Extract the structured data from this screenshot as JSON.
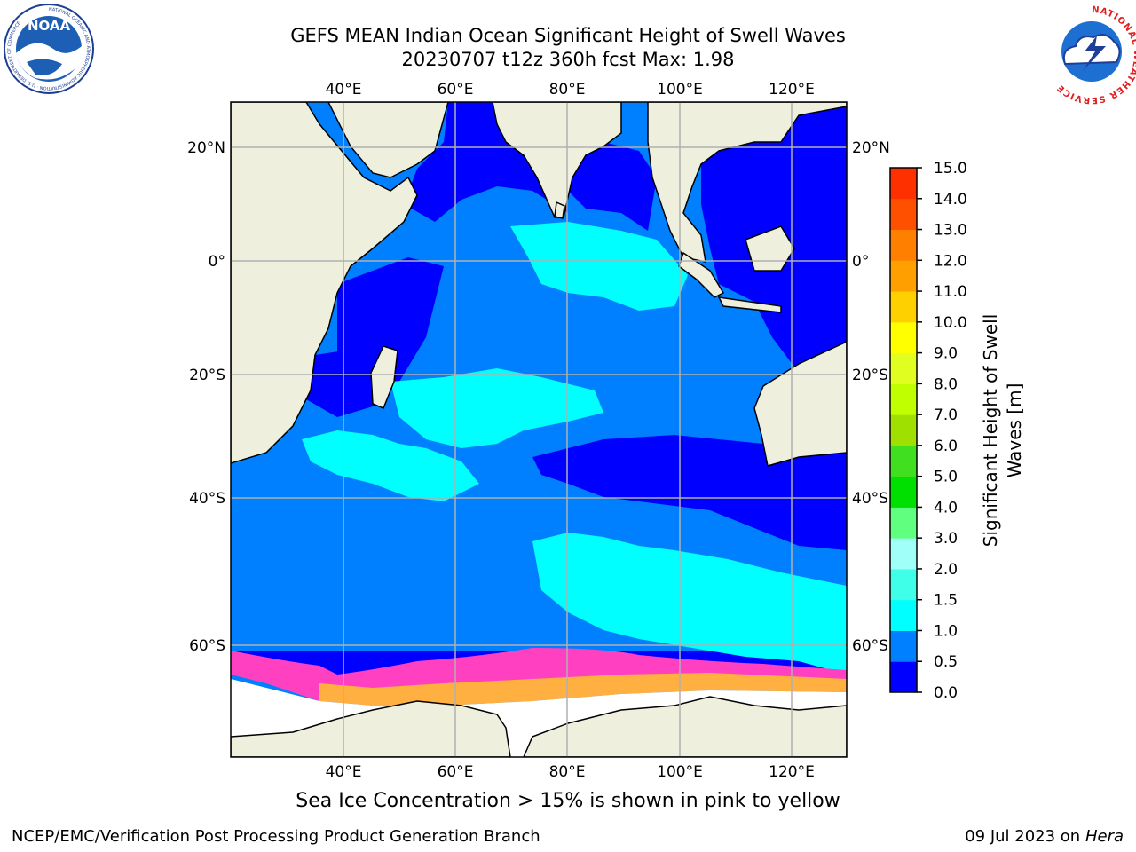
{
  "title": {
    "line1": "GEFS MEAN Indian Ocean Significant Height of Swell Waves",
    "line2": "20230707 t12z 360h fcst   Max: 1.98"
  },
  "logos": {
    "left_name": "NOAA",
    "left_ring": "NATIONAL OCEANIC AND ATMOSPHERIC ADMINISTRATION · U.S. DEPARTMENT OF COMMERCE",
    "right_ring": "NATIONAL WEATHER SERVICE"
  },
  "map": {
    "lon_labels": [
      "40°E",
      "60°E",
      "80°E",
      "100°E",
      "120°E"
    ],
    "lat_labels": [
      "20°N",
      "0°",
      "20°S",
      "40°S",
      "60°S"
    ],
    "colors": {
      "ocean_dark": "#0000ff",
      "ocean_mid": "#0080ff",
      "ocean_light": "#00ffff",
      "land": "#efefde",
      "ice": "#ffffff",
      "ice_edge_pink": "#ff40c0",
      "ice_edge_orange": "#ffb040",
      "grid": "#b0b0b0"
    }
  },
  "colorbar": {
    "label_line1": "Significant Height of Swell",
    "label_line2": "Waves [m]",
    "ticks": [
      "0.0",
      "0.5",
      "1.0",
      "1.5",
      "2.0",
      "3.0",
      "4.0",
      "5.0",
      "6.0",
      "7.0",
      "8.0",
      "9.0",
      "10.0",
      "11.0",
      "12.0",
      "13.0",
      "14.0",
      "15.0"
    ],
    "colors": [
      "#0000ff",
      "#0080ff",
      "#00ffff",
      "#40ffe8",
      "#a0fff8",
      "#60ff80",
      "#00e000",
      "#40e020",
      "#a0e000",
      "#c0ff00",
      "#e0ff20",
      "#ffff00",
      "#ffd000",
      "#ffa000",
      "#ff8000",
      "#ff5000",
      "#ff3000",
      "#ff0000"
    ]
  },
  "note": "Sea Ice Concentration > 15% is shown in pink to yellow",
  "footer": {
    "left": "NCEP/EMC/Verification Post Processing Product Generation Branch",
    "right_prefix": "09 Jul 2023 on ",
    "right_host": "Hera"
  }
}
